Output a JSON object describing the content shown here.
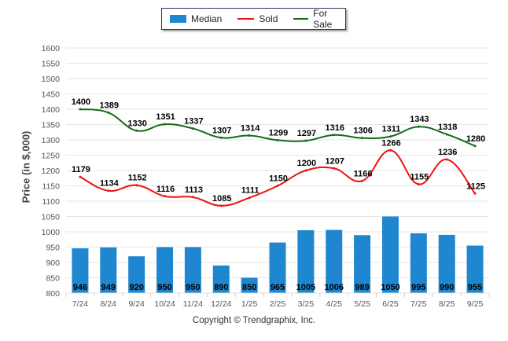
{
  "chart_data": {
    "type": "bar+line",
    "title": "",
    "xlabel": "",
    "ylabel": "Price (in $,000)",
    "ylim": [
      800,
      1600
    ],
    "ytick_step": 50,
    "yticks": [
      "800",
      "850",
      "900",
      "950",
      "1000",
      "1050",
      "1100",
      "1150",
      "1200",
      "1250",
      "1300",
      "1350",
      "1400",
      "1450",
      "1500",
      "1550",
      "1600"
    ],
    "grid": true,
    "legend_position": "top-center",
    "categories": [
      "7/24",
      "8/24",
      "9/24",
      "10/24",
      "11/24",
      "12/24",
      "1/25",
      "2/25",
      "3/25",
      "4/25",
      "5/25",
      "6/25",
      "7/25",
      "8/25",
      "9/25"
    ],
    "series": [
      {
        "name": "Median",
        "kind": "bar",
        "color": "#1f87cf",
        "values": [
          946,
          949,
          920,
          950,
          950,
          890,
          850,
          965,
          1005,
          1006,
          989,
          1050,
          995,
          990,
          955
        ]
      },
      {
        "name": "Sold",
        "kind": "line",
        "color": "#ee1111",
        "values": [
          1179,
          1134,
          1152,
          1116,
          1113,
          1085,
          1111,
          1150,
          1200,
          1207,
          1166,
          1266,
          1155,
          1236,
          1125
        ]
      },
      {
        "name": "For Sale",
        "kind": "line",
        "color": "#156b15",
        "values": [
          1400,
          1389,
          1330,
          1351,
          1337,
          1307,
          1314,
          1299,
          1297,
          1316,
          1306,
          1311,
          1343,
          1318,
          1280
        ]
      }
    ]
  },
  "legend": {
    "items": [
      {
        "label": "Median",
        "color": "#1f87cf"
      },
      {
        "label": "Sold",
        "color": "#ee1111"
      },
      {
        "label": "For Sale",
        "color": "#156b15"
      }
    ]
  },
  "footer": {
    "copyright": "Copyright © Trendgraphix, Inc."
  }
}
